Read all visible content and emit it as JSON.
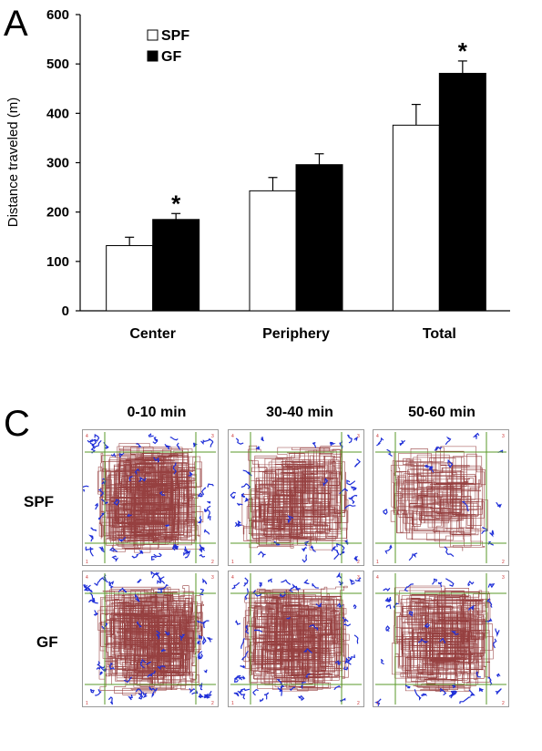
{
  "panel_a_letter": "A",
  "panel_c_letter": "C",
  "chart_data": {
    "type": "bar",
    "title": "",
    "xlabel": "",
    "ylabel": "Distance traveled (m)",
    "ylim": [
      0,
      600
    ],
    "yticks": [
      0,
      100,
      200,
      300,
      400,
      500,
      600
    ],
    "categories": [
      "Center",
      "Periphery",
      "Total"
    ],
    "series": [
      {
        "name": "SPF",
        "values": [
          132,
          243,
          376
        ],
        "errors": [
          17,
          27,
          42
        ],
        "fill": "#ffffff"
      },
      {
        "name": "GF",
        "values": [
          185,
          296,
          481
        ],
        "errors": [
          12,
          22,
          25
        ],
        "fill": "#000000"
      }
    ],
    "significance": [
      "*",
      "",
      "*"
    ],
    "legend_position": "top-left",
    "grid": false
  },
  "tracks": {
    "columns": [
      "0-10 min",
      "30-40 min",
      "50-60 min"
    ],
    "rows": [
      "SPF",
      "GF"
    ],
    "corner_labels": [
      "4",
      "3",
      "1",
      "2"
    ],
    "path_color": "#8b2b2b",
    "rest_color": "#1f2fd8",
    "zone_line_color": "#5a9a2a",
    "activity": [
      [
        1.0,
        0.55,
        0.25
      ],
      [
        1.0,
        0.85,
        0.6
      ]
    ]
  }
}
